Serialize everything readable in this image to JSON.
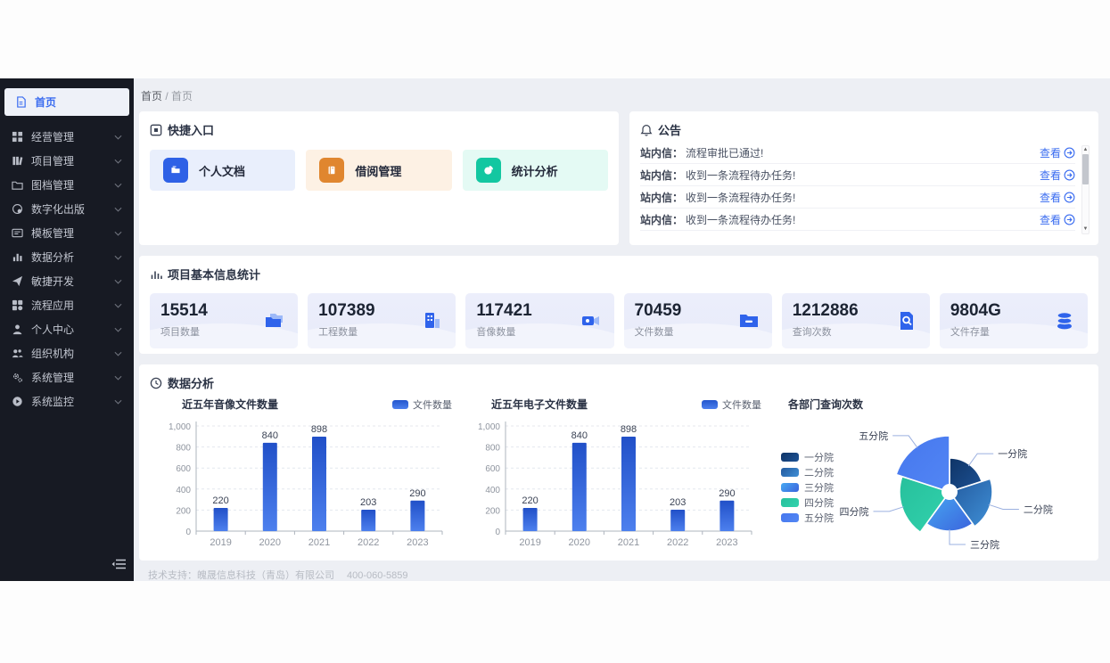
{
  "breadcrumb": {
    "items": [
      "首页",
      "首页"
    ],
    "separator": "/"
  },
  "sidebar": {
    "active": {
      "label": "首页",
      "icon": "document-icon"
    },
    "items": [
      {
        "label": "经营管理",
        "icon": "grid-icon"
      },
      {
        "label": "项目管理",
        "icon": "project-bars-icon"
      },
      {
        "label": "图档管理",
        "icon": "folder-open-icon"
      },
      {
        "label": "数字化出版",
        "icon": "publish-globe-icon"
      },
      {
        "label": "模板管理",
        "icon": "template-card-icon"
      },
      {
        "label": "数据分析",
        "icon": "chart-bars-icon"
      },
      {
        "label": "敏捷开发",
        "icon": "paper-plane-icon"
      },
      {
        "label": "流程应用",
        "icon": "workflow-grid-icon"
      },
      {
        "label": "个人中心",
        "icon": "user-icon"
      },
      {
        "label": "组织机构",
        "icon": "org-people-icon"
      },
      {
        "label": "系统管理",
        "icon": "gears-icon"
      },
      {
        "label": "系统监控",
        "icon": "monitor-play-icon"
      }
    ]
  },
  "quick_entry": {
    "title": "快捷入口",
    "shortcuts": [
      {
        "label": "个人文档",
        "icon": "personal-doc-icon",
        "icon_bg": "#2e61e6",
        "tile_bg": "#e9effc"
      },
      {
        "label": "借阅管理",
        "icon": "book-icon",
        "icon_bg": "#e0862f",
        "tile_bg": "#fdf1e4"
      },
      {
        "label": "统计分析",
        "icon": "pie-icon",
        "icon_bg": "#13c7a1",
        "tile_bg": "#e4faf4"
      }
    ]
  },
  "notice": {
    "title": "公告",
    "action_label": "查看",
    "items": [
      {
        "prefix": "站内信：",
        "text": "流程审批已通过!"
      },
      {
        "prefix": "站内信：",
        "text": "收到一条流程待办任务!"
      },
      {
        "prefix": "站内信：",
        "text": "收到一条流程待办任务!"
      },
      {
        "prefix": "站内信：",
        "text": "收到一条流程待办任务!"
      }
    ]
  },
  "stats": {
    "title": "项目基本信息统计",
    "cards": [
      {
        "value": "15514",
        "label": "项目数量",
        "icon": "folders-icon"
      },
      {
        "value": "107389",
        "label": "工程数量",
        "icon": "building-icon"
      },
      {
        "value": "117421",
        "label": "音像数量",
        "icon": "video-icon"
      },
      {
        "value": "70459",
        "label": "文件数量",
        "icon": "folder-minus-icon"
      },
      {
        "value": "1212886",
        "label": "查询次数",
        "icon": "search-doc-icon"
      },
      {
        "value": "9804G",
        "label": "文件存量",
        "icon": "database-icon"
      }
    ]
  },
  "analysis": {
    "title": "数据分析"
  },
  "chart_data": [
    {
      "type": "bar",
      "title": "近五年音像文件数量",
      "legend": [
        "文件数量"
      ],
      "categories": [
        "2019",
        "2020",
        "2021",
        "2022",
        "2023"
      ],
      "values": [
        220,
        840,
        898,
        203,
        290
      ],
      "ylim": [
        0,
        1000
      ],
      "yticks": [
        "0",
        "200",
        "400",
        "600",
        "800",
        "1,000"
      ],
      "grid": "dashed",
      "legend_position": "top-right"
    },
    {
      "type": "bar",
      "title": "近五年电子文件数量",
      "legend": [
        "文件数量"
      ],
      "categories": [
        "2019",
        "2020",
        "2021",
        "2022",
        "2023"
      ],
      "values": [
        220,
        840,
        898,
        203,
        290
      ],
      "ylim": [
        0,
        1000
      ],
      "yticks": [
        "0",
        "200",
        "400",
        "600",
        "800",
        "1,000"
      ],
      "grid": "dashed",
      "legend_position": "top-right"
    },
    {
      "type": "pie",
      "subtype": "rose",
      "title": "各部门查询次数",
      "labels": [
        "一分院",
        "二分院",
        "三分院",
        "四分院",
        "五分院"
      ],
      "values": [
        38,
        48,
        44,
        56,
        63
      ],
      "values_note": "relative radius px, no numeric labels shown in chart",
      "colors": [
        [
          "#0f3466",
          "#1d5295"
        ],
        [
          "#235a9e",
          "#3f8fd6"
        ],
        [
          "#47aaf2",
          "#3b63dd"
        ],
        [
          "#27c09c",
          "#32d2ad"
        ],
        [
          "#4677ee",
          "#5286f4"
        ]
      ],
      "label_dirs": [
        1,
        1,
        1,
        -1,
        -1
      ],
      "legend_position": "left",
      "hole_radius": 9
    }
  ],
  "colors": {
    "accent": "#3a6cf0",
    "sidebar_bg": "#171a23",
    "main_bg": "#edeff4",
    "stat_card_bg": "#e9edfa",
    "bar_top": "#2150c8",
    "bar_bottom": "#4d80ee",
    "pie_leader_line": "#9bb0e0"
  },
  "footer": {
    "support": "技术支持：魄晟信息科技（青岛）有限公司",
    "phone": "400-060-5859"
  }
}
